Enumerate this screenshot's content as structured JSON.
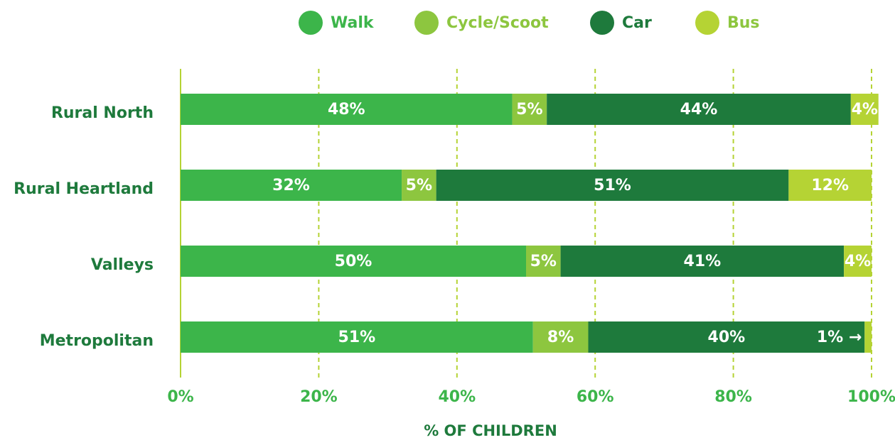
{
  "chart_data": {
    "type": "stacked_bar_horizontal",
    "categories": [
      "Rural North",
      "Rural Heartland",
      "Valleys",
      "Metropolitan"
    ],
    "series": [
      {
        "name": "Walk",
        "color": "#3cb54a",
        "values": [
          48,
          32,
          50,
          51
        ],
        "value_labels": [
          "48%",
          "32%",
          "50%",
          "51%"
        ]
      },
      {
        "name": "Cycle/Scoot",
        "color": "#8dc63f",
        "values": [
          5,
          5,
          5,
          8
        ],
        "value_labels": [
          "5%",
          "5%",
          "5%",
          "8%"
        ]
      },
      {
        "name": "Car",
        "color": "#1e7a3c",
        "values": [
          44,
          51,
          41,
          40
        ],
        "value_labels": [
          "44%",
          "51%",
          "41%",
          "40%"
        ]
      },
      {
        "name": "Bus",
        "color": "#b5d334",
        "values": [
          4,
          12,
          4,
          1
        ],
        "value_labels": [
          "4%",
          "12%",
          "4%",
          "1% →"
        ]
      }
    ],
    "xlim": [
      0,
      100
    ],
    "xticks": [
      {
        "value": 0,
        "label": "0%"
      },
      {
        "value": 20,
        "label": "20%"
      },
      {
        "value": 40,
        "label": "40%"
      },
      {
        "value": 60,
        "label": "60%"
      },
      {
        "value": 80,
        "label": "80%"
      },
      {
        "value": 100,
        "label": "100%"
      }
    ],
    "xlabel": "% OF CHILDREN",
    "grid": true,
    "legend": "top"
  }
}
